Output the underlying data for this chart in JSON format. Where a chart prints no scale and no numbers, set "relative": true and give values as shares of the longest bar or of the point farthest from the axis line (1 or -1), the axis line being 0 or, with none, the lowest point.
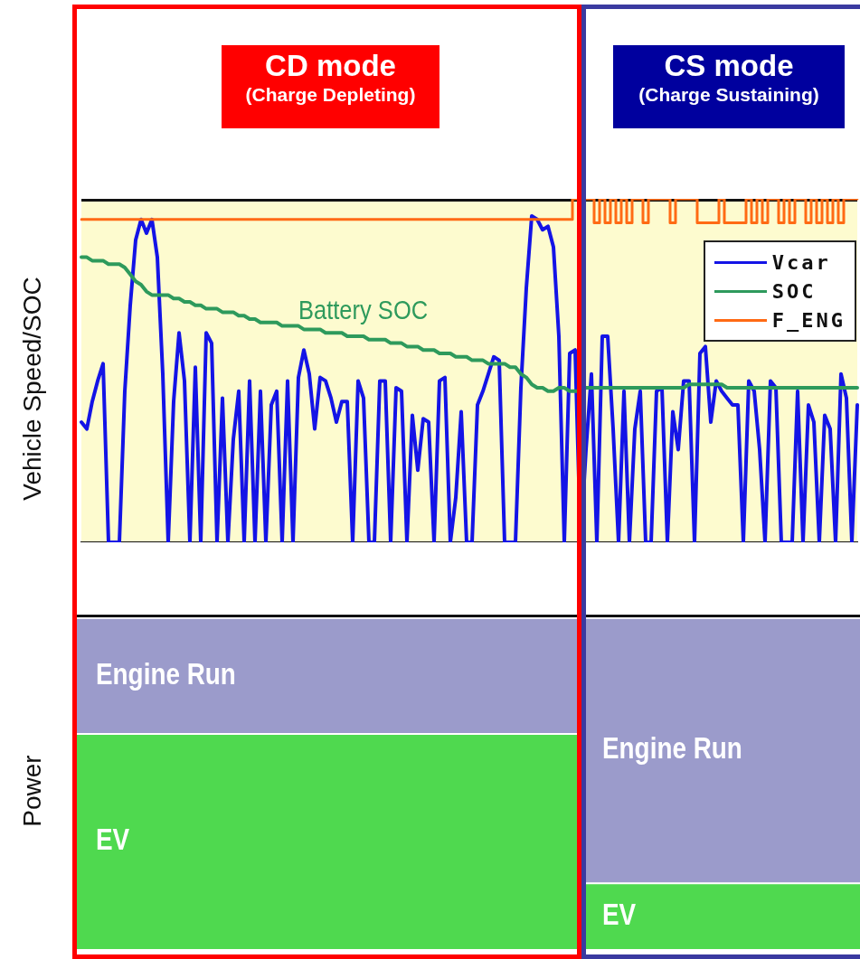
{
  "chart_data": [
    {
      "type": "line",
      "ylabel": "Vehicle Speed/SOC",
      "annotations": [
        "Battery SOC",
        "CD mode",
        "(Charge Depleting)",
        "CS mode",
        "(Charge Sustaining)"
      ],
      "categories": [
        null,
        null,
        null,
        null,
        null,
        null,
        null,
        null,
        null,
        null,
        null,
        null,
        null,
        null,
        null,
        null,
        null,
        null,
        null,
        null,
        null,
        null,
        null,
        null,
        null,
        null,
        null,
        null,
        null,
        null,
        null,
        null,
        null,
        null,
        null,
        null,
        null,
        null,
        null,
        null,
        null,
        null,
        null,
        null,
        null,
        null,
        null,
        null,
        null,
        null,
        null,
        null,
        null,
        null,
        null,
        null,
        null,
        null,
        null,
        null,
        null,
        null,
        null,
        null,
        null,
        null,
        null,
        null,
        null,
        null,
        null,
        null,
        null,
        null,
        null,
        null,
        null,
        null,
        null,
        null,
        null,
        null,
        null,
        null,
        null,
        null,
        null,
        null,
        null,
        null,
        null,
        null,
        null,
        null,
        null,
        null,
        null,
        null,
        null,
        null,
        null,
        null,
        null,
        null,
        null,
        null,
        null,
        null,
        null,
        null,
        null,
        null,
        null,
        null,
        null,
        null,
        null,
        null,
        null,
        null,
        null,
        null,
        null,
        null,
        null,
        null,
        null,
        null,
        null,
        null,
        null,
        null,
        null,
        null,
        null,
        null,
        null,
        null,
        null,
        null,
        null,
        null,
        null,
        null
      ],
      "relative": true,
      "legend": "top right",
      "marker": "none",
      "line_style": "solid",
      "series": [
        {
          "name": "Vcar",
          "color": "#1414e6",
          "values": [
            0.35,
            0.33,
            0.41,
            0.47,
            0.52,
            0,
            0,
            0,
            0.44,
            0.69,
            0.88,
            0.94,
            0.9,
            0.94,
            0.83,
            0.49,
            0,
            0.41,
            0.61,
            0.47,
            0,
            0.51,
            0,
            0.61,
            0.58,
            0,
            0.42,
            0,
            0.3,
            0.44,
            0,
            0.47,
            0,
            0.44,
            0,
            0.4,
            0.44,
            0,
            0.47,
            0,
            0.48,
            0.56,
            0.49,
            0.33,
            0.48,
            0.47,
            0.42,
            0.35,
            0.41,
            0.41,
            0,
            0.47,
            0.42,
            0,
            0,
            0.47,
            0.47,
            0,
            0.45,
            0.44,
            0,
            0.37,
            0.21,
            0.36,
            0.35,
            0,
            0.47,
            0.48,
            0,
            0.13,
            0.38,
            0,
            0,
            0.4,
            0.44,
            0.49,
            0.54,
            0.53,
            0,
            0,
            0,
            0.45,
            0.74,
            0.95,
            0.94,
            0.91,
            0.92,
            0.86,
            0.6,
            0,
            0.55,
            0.56,
            0,
            0.27,
            0.49,
            0,
            0.6,
            0.6,
            0.33,
            0,
            0.44,
            0,
            0.33,
            0.44,
            0,
            0,
            0.44,
            0.45,
            0,
            0.38,
            0.27,
            0.47,
            0.47,
            0,
            0.55,
            0.57,
            0.35,
            0.47,
            0.44,
            0.42,
            0.4,
            0.4,
            0,
            0.47,
            0.44,
            0.27,
            0,
            0.47,
            0.45,
            0,
            0,
            0,
            0.44,
            0,
            0.4,
            0.35,
            0,
            0.37,
            0.33,
            0,
            0.49,
            0.42,
            0,
            0.4
          ]
        },
        {
          "name": "SOC",
          "color": "#2e9a5c",
          "values": [
            0.83,
            0.83,
            0.82,
            0.82,
            0.82,
            0.81,
            0.81,
            0.81,
            0.8,
            0.78,
            0.76,
            0.75,
            0.73,
            0.72,
            0.72,
            0.72,
            0.72,
            0.71,
            0.71,
            0.7,
            0.7,
            0.69,
            0.69,
            0.68,
            0.68,
            0.68,
            0.67,
            0.67,
            0.67,
            0.66,
            0.66,
            0.65,
            0.65,
            0.64,
            0.64,
            0.64,
            0.64,
            0.63,
            0.63,
            0.63,
            0.63,
            0.62,
            0.62,
            0.62,
            0.62,
            0.61,
            0.61,
            0.61,
            0.61,
            0.6,
            0.6,
            0.6,
            0.6,
            0.59,
            0.59,
            0.59,
            0.59,
            0.58,
            0.58,
            0.58,
            0.57,
            0.57,
            0.57,
            0.56,
            0.56,
            0.56,
            0.55,
            0.55,
            0.55,
            0.54,
            0.54,
            0.54,
            0.53,
            0.53,
            0.53,
            0.52,
            0.52,
            0.52,
            0.52,
            0.51,
            0.51,
            0.49,
            0.48,
            0.46,
            0.45,
            0.45,
            0.44,
            0.44,
            0.45,
            0.45,
            0.44,
            0.44,
            0.44,
            0.45,
            0.45,
            0.45,
            0.45,
            0.45,
            0.45,
            0.45,
            0.45,
            0.45,
            0.45,
            0.45,
            0.45,
            0.45,
            0.45,
            0.45,
            0.45,
            0.45,
            0.45,
            0.45,
            0.46,
            0.46,
            0.46,
            0.46,
            0.46,
            0.46,
            0.46,
            0.45,
            0.45,
            0.45,
            0.45,
            0.45,
            0.45,
            0.45,
            0.45,
            0.45,
            0.45,
            0.45,
            0.45,
            0.45,
            0.45,
            0.45,
            0.45,
            0.45,
            0.45,
            0.45,
            0.45,
            0.45,
            0.45,
            0.45,
            0.45,
            0.45
          ]
        },
        {
          "name": "F_ENG",
          "type": "step",
          "color": "#ff6a14",
          "values": [
            0.94,
            0.94,
            0.94,
            0.94,
            0.94,
            0.94,
            0.94,
            0.94,
            0.94,
            0.94,
            0.94,
            0.94,
            0.94,
            0.94,
            0.94,
            0.94,
            0.94,
            0.94,
            0.94,
            0.94,
            0.94,
            0.94,
            0.94,
            0.94,
            0.94,
            0.94,
            0.94,
            0.94,
            0.94,
            0.94,
            0.94,
            0.94,
            0.94,
            0.94,
            0.94,
            0.94,
            0.94,
            0.94,
            0.94,
            0.94,
            0.94,
            0.94,
            0.94,
            0.94,
            0.94,
            0.94,
            0.94,
            0.94,
            0.94,
            0.94,
            0.94,
            0.94,
            0.94,
            0.94,
            0.94,
            0.94,
            0.94,
            0.94,
            0.94,
            0.94,
            0.94,
            0.94,
            0.94,
            0.94,
            0.94,
            0.94,
            0.94,
            0.94,
            0.94,
            0.94,
            0.94,
            0.94,
            0.94,
            0.94,
            0.94,
            0.94,
            0.94,
            0.94,
            0.94,
            0.94,
            0.94,
            0.94,
            0.94,
            0.94,
            0.94,
            0.94,
            0.94,
            0.94,
            0.94,
            0.94,
            0.94,
            1,
            1,
            1,
            1,
            0.93,
            1,
            0.93,
            1,
            0.93,
            1,
            0.93,
            1,
            1,
            0.93,
            1,
            1,
            1,
            1,
            0.93,
            1,
            1,
            1,
            1,
            0.93,
            0.93,
            0.93,
            0.93,
            1,
            0.93,
            0.93,
            0.93,
            0.93,
            1,
            0.93,
            1,
            0.93,
            1,
            1,
            0.93,
            1,
            0.93,
            1,
            1,
            0.93,
            1,
            0.93,
            1,
            0.93,
            1,
            0.93,
            1,
            1,
            1
          ]
        }
      ]
    },
    {
      "type": "bar",
      "ylabel": "Power",
      "categories": [
        null,
        null
      ],
      "relative": true,
      "stacked": true,
      "legend": false,
      "series": [
        {
          "name": "EV",
          "color": "#4fd94f",
          "values": [
            0.65,
            0.2
          ]
        },
        {
          "name": "Engine Run",
          "color": "#9b9bcb",
          "values": [
            0.35,
            0.8
          ]
        }
      ]
    }
  ]
}
